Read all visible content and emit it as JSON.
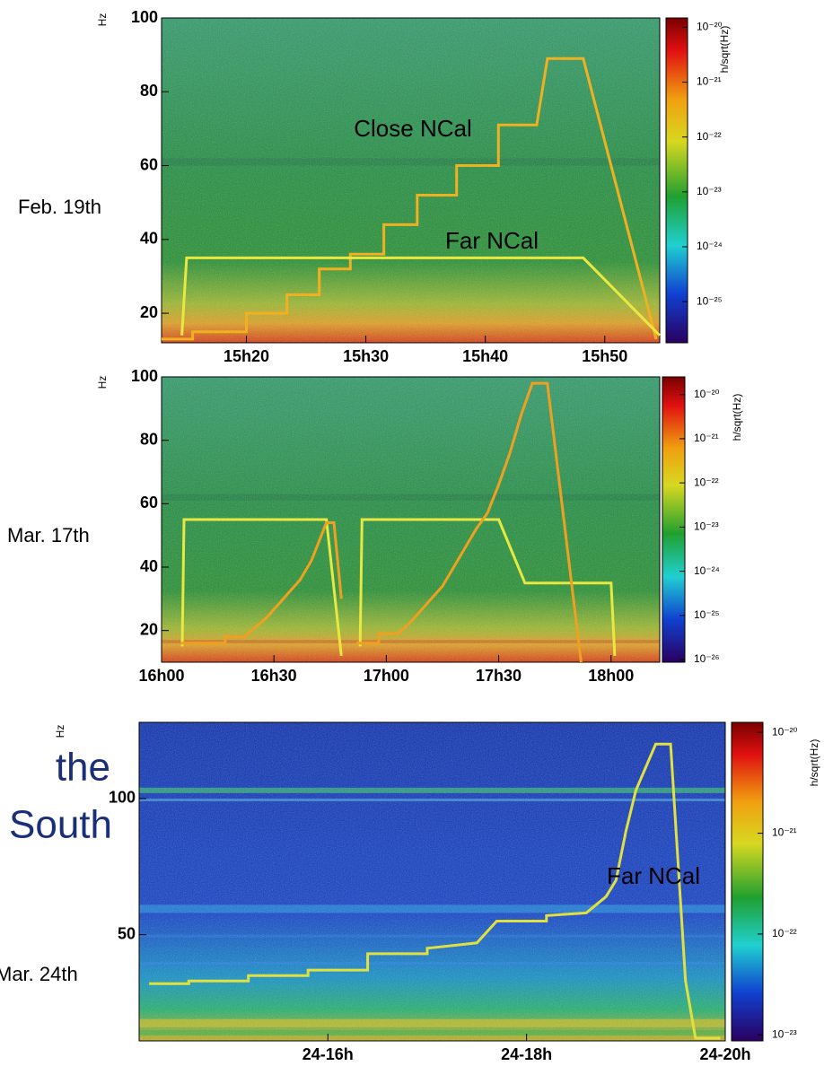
{
  "slide_text": [
    "the",
    "South"
  ],
  "chart_data": [
    {
      "type": "spectrogram",
      "label": "Feb. 19th",
      "ylabel": "Hz",
      "colorbar_label": "h/sqrt(Hz)",
      "xlim": [
        12.9,
        54.6
      ],
      "xticks": [
        {
          "value": 20,
          "label": "15h20"
        },
        {
          "value": 30,
          "label": "15h30"
        },
        {
          "value": 40,
          "label": "15h40"
        },
        {
          "value": 50,
          "label": "15h50"
        }
      ],
      "ylim": [
        12,
        100
      ],
      "yticks": [
        20,
        40,
        60,
        80,
        100
      ],
      "clim": [
        -25.75,
        -19.83
      ],
      "cticks": [
        {
          "value": -20,
          "label": "10⁻²⁰"
        },
        {
          "value": -21,
          "label": "10⁻²¹"
        },
        {
          "value": -22,
          "label": "10⁻²²"
        },
        {
          "value": -23,
          "label": "10⁻²³"
        },
        {
          "value": -24,
          "label": "10⁻²⁴"
        },
        {
          "value": -25,
          "label": "10⁻²⁵"
        }
      ],
      "series": [
        {
          "name": "Close NCal",
          "color": "#f0b020",
          "x": [
            12.9,
            15.5,
            15.5,
            20,
            20,
            23.4,
            23.4,
            26.1,
            26.1,
            28.7,
            28.7,
            31.5,
            31.5,
            34.3,
            34.3,
            37.6,
            37.6,
            41.1,
            41.1,
            44.3,
            45.2,
            48.2,
            54.3
          ],
          "values": [
            13,
            13,
            15,
            15,
            20,
            20,
            25,
            25,
            32,
            32,
            36,
            36,
            44,
            44,
            52,
            52,
            60,
            60,
            71,
            71,
            89,
            89,
            13
          ]
        },
        {
          "name": "Far NCal",
          "color": "#e8e840",
          "x": [
            14.6,
            15.0,
            48.2,
            54.6
          ],
          "values": [
            14,
            35,
            35,
            14
          ]
        }
      ]
    },
    {
      "type": "spectrogram",
      "label": "Mar. 17th",
      "ylabel": "Hz",
      "colorbar_label": "h/sqrt(Hz)",
      "xlim": [
        0,
        133
      ],
      "xticks": [
        {
          "value": 0,
          "label": "16h00"
        },
        {
          "value": 30,
          "label": "16h30"
        },
        {
          "value": 60,
          "label": "17h00"
        },
        {
          "value": 90,
          "label": "17h30"
        },
        {
          "value": 120,
          "label": "18h00"
        }
      ],
      "ylim": [
        10,
        100
      ],
      "yticks": [
        20,
        40,
        60,
        80,
        100
      ],
      "clim": [
        -26.06,
        -19.6
      ],
      "cticks": [
        {
          "value": -20,
          "label": "10⁻²⁰"
        },
        {
          "value": -21,
          "label": "10⁻²¹"
        },
        {
          "value": -22,
          "label": "10⁻²²"
        },
        {
          "value": -23,
          "label": "10⁻²³"
        },
        {
          "value": -24,
          "label": "10⁻²⁴"
        },
        {
          "value": -25,
          "label": "10⁻²⁵"
        },
        {
          "value": -26,
          "label": "10⁻²⁶"
        }
      ],
      "series": [
        {
          "color": "#e8e840",
          "x": [
            5.5,
            6,
            44,
            48
          ],
          "values": [
            15,
            55,
            55,
            12
          ]
        },
        {
          "color": "#f0a020",
          "x": [
            5,
            17,
            17,
            22,
            25,
            28,
            31,
            34,
            37,
            40,
            42,
            44,
            46,
            48
          ],
          "values": [
            16,
            16,
            18,
            18,
            21,
            24,
            28,
            32,
            36,
            42,
            48,
            54,
            54,
            30
          ]
        },
        {
          "color": "#e8e840",
          "x": [
            53,
            53.5,
            90,
            97,
            120,
            121
          ],
          "values": [
            15,
            55,
            55,
            35,
            35,
            12
          ]
        },
        {
          "color": "#f0a020",
          "x": [
            52,
            58,
            58,
            63,
            66,
            69,
            72,
            75,
            78,
            81,
            84,
            87,
            90,
            93,
            96,
            99,
            103,
            112
          ],
          "values": [
            16,
            16,
            19,
            19,
            22,
            26,
            30,
            34,
            40,
            46,
            52,
            57,
            66,
            76,
            88,
            98,
            98,
            10
          ]
        }
      ]
    },
    {
      "type": "spectrogram",
      "label": "Mar. 24th",
      "ylabel": "Hz",
      "colorbar_label": "h/sqrt(Hz)",
      "xlim": [
        14.1,
        20
      ],
      "xticks": [
        {
          "value": 16,
          "label": "24-16h"
        },
        {
          "value": 18,
          "label": "24-18h"
        },
        {
          "value": 20,
          "label": "24-20h"
        }
      ],
      "ylim": [
        11,
        128
      ],
      "yticks": [
        50,
        100
      ],
      "clim": [
        -23.06,
        -19.9
      ],
      "cticks": [
        {
          "value": -20,
          "label": "10⁻²⁰"
        },
        {
          "value": -21,
          "label": "10⁻²¹"
        },
        {
          "value": -22,
          "label": "10⁻²²"
        },
        {
          "value": -23,
          "label": "10⁻²³"
        }
      ],
      "series": [
        {
          "name": "Far NCal",
          "color": "#e0e040",
          "x": [
            14.2,
            14.6,
            14.6,
            15.2,
            15.2,
            15.8,
            15.8,
            16.4,
            16.4,
            17.0,
            17.0,
            17.5,
            17.7,
            18.2,
            18.2,
            18.6,
            18.8,
            18.9,
            19.0,
            19.1,
            19.3,
            19.45,
            19.6,
            19.7,
            19.95
          ],
          "values": [
            32,
            32,
            33,
            33,
            35,
            35,
            37,
            37,
            43,
            43,
            45,
            47,
            55,
            55,
            57,
            58,
            64,
            70,
            88,
            103,
            120,
            120,
            33,
            12,
            12
          ]
        }
      ]
    }
  ]
}
